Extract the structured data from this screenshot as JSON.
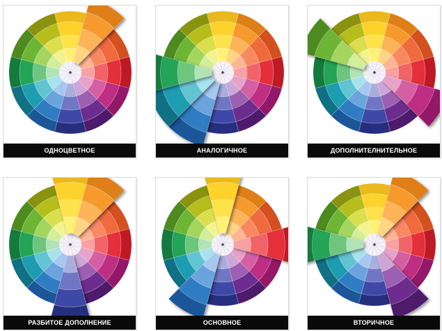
{
  "wheel": {
    "sector_colors": [
      [
        "#FFF173",
        "#FFE14A",
        "#FDD22A",
        "#EAB91E"
      ],
      [
        "#FFD483",
        "#FDB357",
        "#F69A2E",
        "#DE7F18"
      ],
      [
        "#FFB493",
        "#F88860",
        "#EF6A3C",
        "#D4501F"
      ],
      [
        "#F8A0A2",
        "#F06467",
        "#E52F3A",
        "#BD1A24"
      ],
      [
        "#E7A2C9",
        "#D55FA3",
        "#BE2E82",
        "#931868"
      ],
      [
        "#CDA5D6",
        "#9C5FB2",
        "#6D2D8F",
        "#4E1A6C"
      ],
      [
        "#A8AEDD",
        "#6F77C5",
        "#3E48A6",
        "#262E7E"
      ],
      [
        "#A5C9EE",
        "#6BA4DD",
        "#2F7CC2",
        "#1B5699"
      ],
      [
        "#A8E3EB",
        "#62C4D2",
        "#1E9CB0",
        "#0F7183"
      ],
      [
        "#B0E3B5",
        "#6DC57E",
        "#23A456",
        "#147A3D"
      ],
      [
        "#D2EE9B",
        "#A4D65F",
        "#6DB534",
        "#4D8B1F"
      ],
      [
        "#F3F490",
        "#DCDF4D",
        "#B6BE1C",
        "#8A930F"
      ]
    ],
    "inner_color": "#F4F1F8",
    "pointer_color": "#4A4A4A"
  },
  "cards": [
    {
      "label": "ОДНОЦВЕТНОЕ",
      "highlight": [
        1
      ]
    },
    {
      "label": "АНАЛОГИЧНОЕ",
      "highlight": [
        7,
        8,
        9
      ]
    },
    {
      "label": "ДОПОЛНИТЕЛНИТЕЛЬНОЕ",
      "highlight": [
        10,
        4
      ]
    },
    {
      "label": "РАЗБИТОЕ ДОПОЛНЕНИЕ",
      "highlight": [
        0,
        1,
        6
      ]
    },
    {
      "label": "ОСНОВНОЕ",
      "highlight": [
        0,
        3,
        7
      ]
    },
    {
      "label": "ВТОРИЧНОЕ",
      "highlight": [
        9,
        1,
        5
      ]
    }
  ]
}
